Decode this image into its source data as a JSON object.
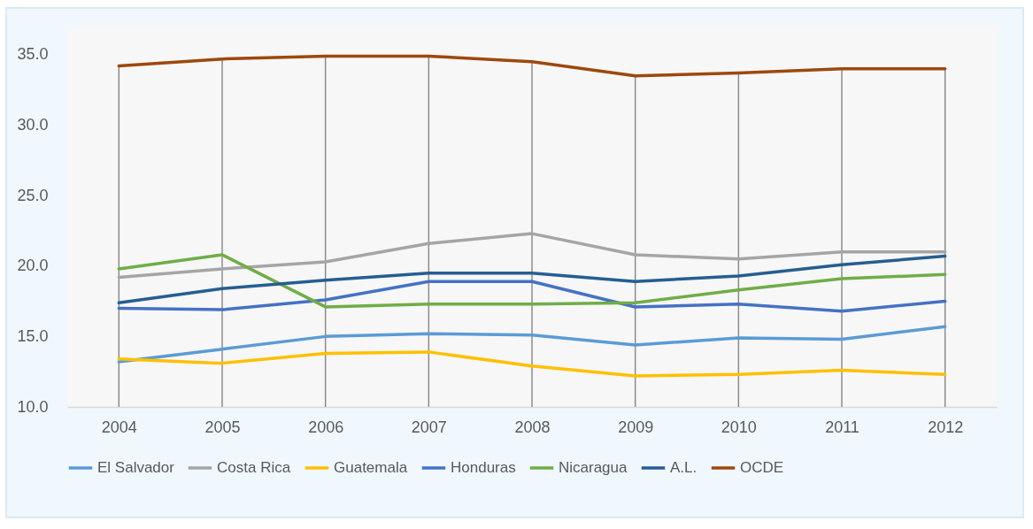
{
  "chart_data": {
    "type": "line",
    "categories": [
      "2004",
      "2005",
      "2006",
      "2007",
      "2008",
      "2009",
      "2010",
      "2011",
      "2012"
    ],
    "series": [
      {
        "name": "El Salvador",
        "color": "#5b9bd5",
        "values": [
          13.2,
          14.1,
          15.0,
          15.2,
          15.1,
          14.4,
          14.9,
          14.8,
          15.7
        ]
      },
      {
        "name": "Costa Rica",
        "color": "#a5a5a5",
        "values": [
          19.2,
          19.8,
          20.3,
          21.6,
          22.3,
          20.8,
          20.5,
          21.0,
          21.0
        ]
      },
      {
        "name": "Guatemala",
        "color": "#ffc000",
        "values": [
          13.4,
          13.1,
          13.8,
          13.9,
          12.9,
          12.2,
          12.3,
          12.6,
          12.3
        ]
      },
      {
        "name": "Honduras",
        "color": "#4472c4",
        "values": [
          17.0,
          16.9,
          17.6,
          18.9,
          18.9,
          17.1,
          17.3,
          16.8,
          17.5
        ]
      },
      {
        "name": "Nicaragua",
        "color": "#70ad47",
        "values": [
          19.8,
          20.8,
          17.1,
          17.3,
          17.3,
          17.4,
          18.3,
          19.1,
          19.4
        ]
      },
      {
        "name": "A.L.",
        "color": "#255e91",
        "values": [
          17.4,
          18.4,
          19.0,
          19.5,
          19.5,
          18.9,
          19.3,
          20.1,
          20.7
        ]
      },
      {
        "name": "OCDE",
        "color": "#9e480e",
        "values": [
          34.2,
          34.7,
          34.9,
          34.9,
          34.5,
          33.5,
          33.7,
          34.0,
          34.0
        ]
      }
    ],
    "ylim": [
      10,
      37
    ],
    "yticks": [
      {
        "value": 10,
        "label": "10.0"
      },
      {
        "value": 15,
        "label": "15.0"
      },
      {
        "value": 20,
        "label": "20.0"
      },
      {
        "value": 25,
        "label": "25.0"
      },
      {
        "value": 30,
        "label": "30.0"
      },
      {
        "value": 35,
        "label": "35.0"
      }
    ],
    "grid": "x",
    "legend": "bottom",
    "marker": "none",
    "line_style": "solid"
  }
}
